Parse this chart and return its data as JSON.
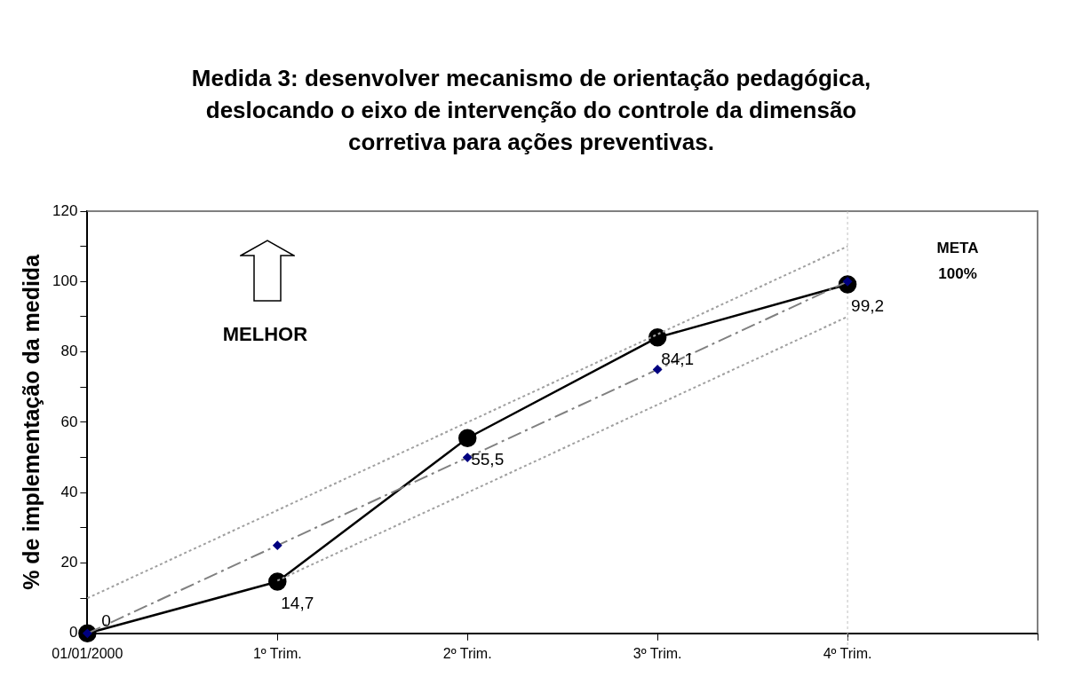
{
  "chart_data": {
    "type": "line",
    "title": "Medida 3:  desenvolver mecanismo de orientação pedagógica, deslocando o eixo de intervenção do controle da dimensão corretiva para ações preventivas.",
    "ylabel": "% de implementação da medida",
    "categories": [
      "01/01/2000",
      "1º Trim.",
      "2º Trim.",
      "3º Trim.",
      "4º Trim.",
      null
    ],
    "series": [
      {
        "color": "#a0a0a0",
        "line_style": "dotted",
        "marker": "none",
        "values": [
          10,
          35,
          60,
          85,
          110,
          null
        ]
      },
      {
        "color": "#a0a0a0",
        "line_style": "dotted",
        "marker": "none",
        "values": [
          null,
          15,
          40,
          65,
          90,
          null
        ]
      },
      {
        "color": "#808080",
        "colors": [
          "#000080",
          "#000080",
          "#000080",
          "#000080",
          "#000080",
          "#000080"
        ],
        "line_style": "dashed",
        "marker": "diamond",
        "values": [
          0,
          25,
          50,
          75,
          100,
          null
        ]
      },
      {
        "color": "#000000",
        "line_style": "solid",
        "marker": "circle",
        "values": [
          0,
          14.7,
          55.5,
          84.1,
          99.2,
          null
        ],
        "value_labels": [
          "0",
          "14,7",
          "55,5",
          "84,1",
          "99,2",
          null
        ]
      }
    ],
    "ylim": [
      0,
      120
    ],
    "yticks": [
      0,
      {
        "value": 10,
        "label": null
      },
      20,
      {
        "value": 30,
        "label": null
      },
      40,
      {
        "value": 50,
        "label": null
      },
      60,
      {
        "value": 70,
        "label": null
      },
      80,
      {
        "value": 90,
        "label": null
      },
      100,
      {
        "value": 110,
        "label": null
      },
      120
    ],
    "ref_lines": [
      {
        "axis": "x",
        "value": "4º Trim.",
        "color": "#c0c0c0",
        "line_style": "dotted"
      }
    ],
    "annotations": [
      "MELHOR",
      "META\n100%"
    ],
    "grid": false,
    "legend": false
  }
}
